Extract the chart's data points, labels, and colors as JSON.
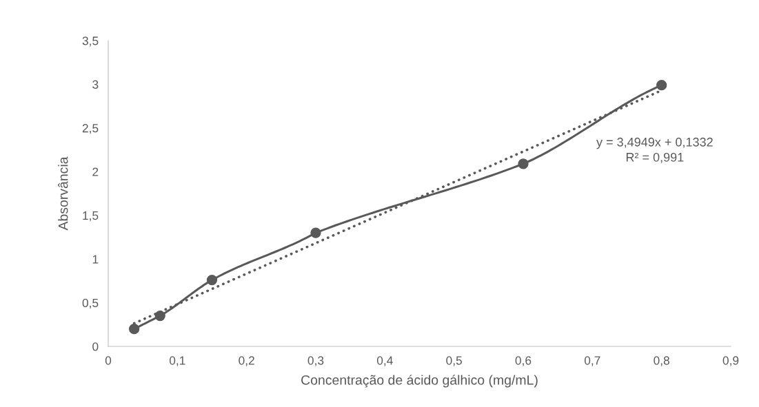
{
  "chart_data": {
    "type": "line",
    "xlabel": "Concentração de ácido gálhico (mg/mL)",
    "ylabel": "Absorvância",
    "series": [
      {
        "marker": "circle",
        "line_style": "solid",
        "color": "#595959",
        "x": [
          0.0375,
          0.075,
          0.15,
          0.3,
          0.6,
          0.8
        ],
        "values": [
          0.2,
          0.35,
          0.76,
          1.3,
          2.09,
          2.99
        ]
      },
      {
        "type": "line",
        "marker": "none",
        "line_style": "dotted",
        "color": "#595959",
        "x": [
          0.0375,
          0.8
        ],
        "values": [
          0.264,
          2.93
        ]
      }
    ],
    "annotations": [
      "y = 3,4949x + 0,1332\nR² = 0,991"
    ],
    "xlim": [
      0,
      0.9
    ],
    "xticks": [
      0,
      {
        "value": 0.1,
        "label": "0,1"
      },
      {
        "value": 0.2,
        "label": "0,2"
      },
      {
        "value": 0.3,
        "label": "0,3"
      },
      {
        "value": 0.4,
        "label": "0,4"
      },
      {
        "value": 0.5,
        "label": "0,5"
      },
      {
        "value": 0.6,
        "label": "0,6"
      },
      {
        "value": 0.7,
        "label": "0,7"
      },
      {
        "value": 0.8,
        "label": "0,8"
      },
      {
        "value": 0.9,
        "label": "0,9"
      }
    ],
    "ylim": [
      0,
      3.5
    ],
    "yticks": [
      0,
      {
        "value": 0.5,
        "label": "0,5"
      },
      1,
      {
        "value": 1.5,
        "label": "1,5"
      },
      2,
      {
        "value": 2.5,
        "label": "2,5"
      },
      3,
      {
        "value": 3.5,
        "label": "3,5"
      }
    ],
    "grid": false
  }
}
